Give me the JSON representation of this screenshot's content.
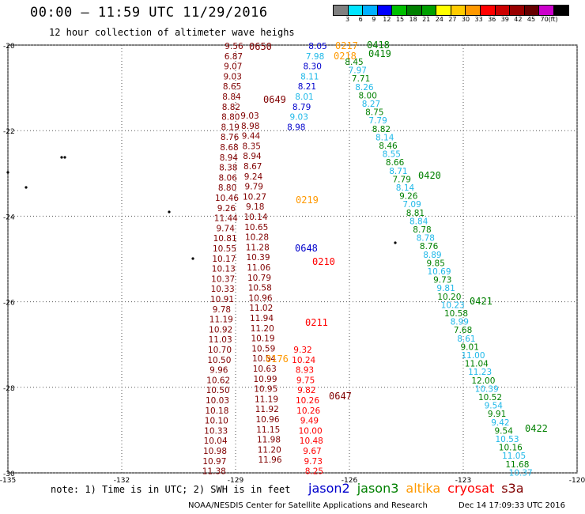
{
  "header": {
    "title": "00:00 – 11:59 UTC 11/29/2016",
    "subtitle": "12 hour collection of altimeter wave heighs"
  },
  "colorbar": {
    "unit": "(ft)",
    "labels": [
      "3",
      "6",
      "9",
      "12",
      "15",
      "18",
      "21",
      "24",
      "27",
      "30",
      "33",
      "36",
      "39",
      "42",
      "45",
      "70"
    ],
    "colors": [
      "#808080",
      "#00e5ff",
      "#00b0ff",
      "#0000ff",
      "#00c000",
      "#008000",
      "#00a000",
      "#ffff00",
      "#ffcc00",
      "#ff9900",
      "#ff0000",
      "#cc0000",
      "#990000",
      "#660000",
      "#cc00cc",
      "#000000"
    ]
  },
  "axes": {
    "lat_labels": [
      "-20",
      "-22",
      "-24",
      "-26",
      "-28",
      "-30"
    ],
    "lon_labels": [
      "-135",
      "-132",
      "-129",
      "-126",
      "-123",
      "-120"
    ]
  },
  "satellites": {
    "jason2": "#0000cc",
    "jason3": "#008000",
    "altika": "#ff9900",
    "cryosat": "#ff0000",
    "s3a": "#800000"
  },
  "tracks": [
    {
      "sat": "s3a",
      "label": "0650",
      "values": [
        "9.56",
        "6.87",
        "9.07",
        "9.03",
        "8.65",
        "8.84",
        "8.82",
        "8.80",
        "8.19",
        "8.76",
        "8.68",
        "8.94",
        "8.38",
        "8.06",
        "8.80",
        "10.46",
        "9.26",
        "11.44",
        "9.74",
        "10.81",
        "10.55",
        "10.17",
        "10.13",
        "10.37",
        "10.33",
        "10.91",
        "9.78",
        "11.19",
        "10.92",
        "11.03",
        "10.70",
        "10.50",
        "9.96",
        "10.62",
        "10.50",
        "10.03",
        "10.18",
        "10.10",
        "10.33",
        "10.04",
        "10.98",
        "10.97",
        "11.38"
      ]
    },
    {
      "sat": "s3a",
      "label": "0649",
      "values": [
        "9.03",
        "8.98",
        "9.44",
        "8.35",
        "8.94",
        "8.67",
        "9.24",
        "9.79",
        "10.27",
        "9.18",
        "10.14",
        "10.65",
        "10.28",
        "11.28",
        "10.39",
        "11.06",
        "10.79",
        "10.58",
        "10.96",
        "11.02",
        "11.94",
        "11.20",
        "10.19",
        "10.59",
        "10.54",
        "10.63",
        "10.99",
        "10.95",
        "11.19",
        "11.92",
        "10.96",
        "11.15",
        "11.98",
        "11.20",
        "11.96"
      ]
    },
    {
      "sat": "jason2",
      "label": "0648",
      "values": [
        "8.05",
        "7.98",
        "8.30",
        "8.11",
        "8.21",
        "8.01",
        "8.79",
        "9.03",
        "8.98"
      ]
    },
    {
      "sat": "cryosat",
      "label": "0210",
      "values": []
    },
    {
      "sat": "cryosat",
      "label": "0211",
      "values": [
        "9.32",
        "10.24",
        "8.93",
        "9.75",
        "9.82",
        "10.26",
        "10.26",
        "9.49",
        "10.00",
        "10.48",
        "9.67",
        "9.73",
        "8.25"
      ]
    },
    {
      "sat": "altika",
      "label": "0219",
      "values": []
    },
    {
      "sat": "altika",
      "label": "0218",
      "values": []
    },
    {
      "sat": "altika",
      "label": "0217",
      "values": []
    },
    {
      "sat": "altika",
      "label": "0176",
      "values": []
    },
    {
      "sat": "s3a",
      "label": "0647",
      "values": []
    },
    {
      "sat": "jason3",
      "label": "0418",
      "values": []
    },
    {
      "sat": "jason3",
      "label": "0419",
      "values": [
        "8.45",
        "7.97",
        "7.71",
        "8.26",
        "8.00",
        "8.27",
        "8.75",
        "7.79",
        "8.82",
        "8.14",
        "8.46",
        "8.55",
        "8.66",
        "8.71",
        "7.79",
        "8.14",
        "9.26",
        "7.09",
        "8.81",
        "8.84",
        "8.78",
        "8.78",
        "8.76",
        "8.89",
        "9.85",
        "10.69",
        "9.73",
        "9.81",
        "10.20",
        "10.23",
        "10.58",
        "8.99",
        "7.68",
        "8.61",
        "9.01",
        "11.00",
        "11.04",
        "11.23",
        "12.00",
        "10.39",
        "10.52",
        "9.54",
        "9.91",
        "9.42",
        "9.54",
        "10.53",
        "10.16",
        "11.05",
        "11.68",
        "10.37"
      ]
    },
    {
      "sat": "jason3",
      "label": "0420",
      "values": []
    },
    {
      "sat": "jason3",
      "label": "0421",
      "values": []
    },
    {
      "sat": "jason3",
      "label": "0422",
      "values": []
    }
  ],
  "footer": {
    "note": "note: 1) Time is in UTC; 2) SWH is in feet",
    "legend": [
      "jason2",
      "jason3",
      "altika",
      "cryosat",
      "s3a"
    ],
    "credit": "NOAA/NESDIS Center for Satellite Applications and Research",
    "timestamp": "Dec 14 17:09:33 UTC 2016"
  }
}
